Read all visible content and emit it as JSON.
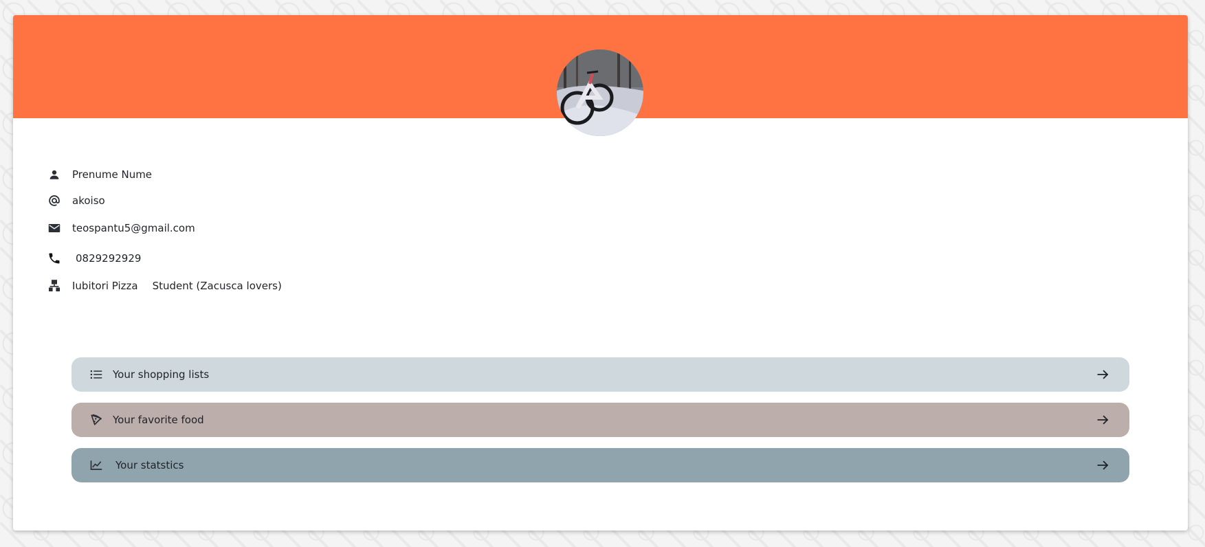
{
  "profile": {
    "full_name": "Prenume Nume",
    "username": "akoiso",
    "email": "teospantu5@gmail.com",
    "phone": "0829292929",
    "group_name": "Iubitori Pizza",
    "group_role": "Student (Zacusca lovers)"
  },
  "colors": {
    "banner": "#ff7241",
    "shopping_button": "#cfd8dc",
    "food_button": "#bcaeaa",
    "stats_button": "#90a4ad"
  },
  "icons": {
    "name": "person-icon",
    "username": "at-sign-icon",
    "email": "mail-icon",
    "phone": "phone-icon",
    "group": "group-icon",
    "shopping": "list-icon",
    "food": "pizza-icon",
    "stats": "chart-line-icon",
    "go": "arrow-right-icon"
  },
  "actions": {
    "shopping_label": "Your shopping lists",
    "food_label": "Your favorite food",
    "stats_label": "Your statstics"
  }
}
